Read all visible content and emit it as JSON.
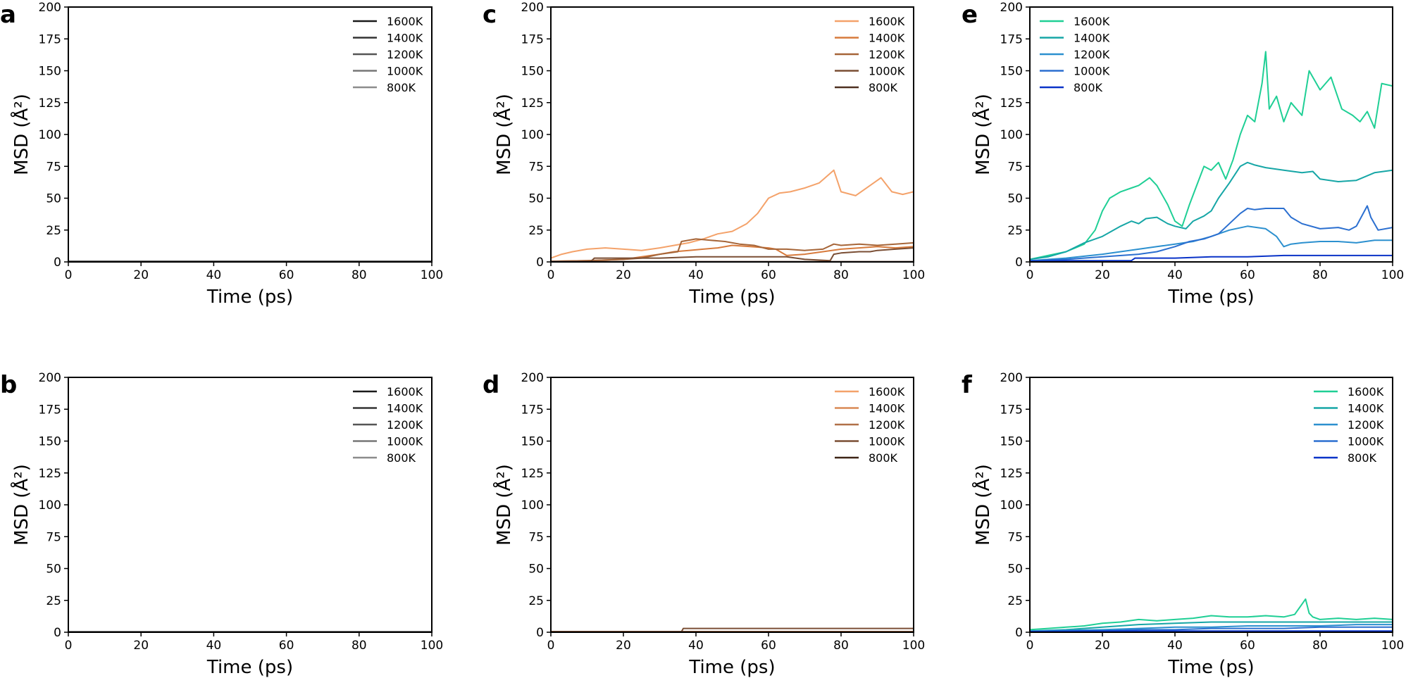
{
  "chart_data": [
    {
      "type": "line",
      "panel": "a",
      "xlabel": "Time (ps)",
      "ylabel": "MSD (Å²)",
      "xlim": [
        0,
        100
      ],
      "ylim": [
        0,
        200
      ],
      "xticks": [
        0,
        20,
        40,
        60,
        80,
        100
      ],
      "yticks": [
        0,
        25,
        50,
        75,
        100,
        125,
        150,
        175,
        200
      ],
      "legend_position": "top-right",
      "series": [
        {
          "name": "1600K",
          "color": "#1a1a1a",
          "x": [
            0,
            100
          ],
          "values": [
            0.6,
            0.6
          ]
        },
        {
          "name": "1400K",
          "color": "#333333",
          "x": [
            0,
            100
          ],
          "values": [
            0.5,
            0.5
          ]
        },
        {
          "name": "1200K",
          "color": "#555555",
          "x": [
            0,
            100
          ],
          "values": [
            0.4,
            0.4
          ]
        },
        {
          "name": "1000K",
          "color": "#777777",
          "x": [
            0,
            100
          ],
          "values": [
            0.4,
            0.4
          ]
        },
        {
          "name": "800K",
          "color": "#8c8c8c",
          "x": [
            0,
            100
          ],
          "values": [
            0.3,
            0.3
          ]
        }
      ]
    },
    {
      "type": "line",
      "panel": "c",
      "xlabel": "Time (ps)",
      "ylabel": "MSD (Å²)",
      "xlim": [
        0,
        100
      ],
      "ylim": [
        0,
        200
      ],
      "xticks": [
        0,
        20,
        40,
        60,
        80,
        100
      ],
      "yticks": [
        0,
        25,
        50,
        75,
        100,
        125,
        150,
        175,
        200
      ],
      "legend_position": "top-right",
      "series": [
        {
          "name": "1600K",
          "color": "#f4a26a",
          "x": [
            0,
            3,
            6,
            10,
            15,
            20,
            25,
            30,
            34,
            38,
            42,
            46,
            50,
            54,
            57,
            60,
            63,
            66,
            70,
            74,
            78,
            80,
            84,
            88,
            91,
            94,
            97,
            100
          ],
          "values": [
            3,
            6,
            8,
            10,
            11,
            10,
            9,
            11,
            13,
            15,
            18,
            22,
            24,
            30,
            38,
            50,
            54,
            55,
            58,
            62,
            72,
            55,
            52,
            60,
            66,
            55,
            53,
            55
          ]
        },
        {
          "name": "1400K",
          "color": "#d77a3c",
          "x": [
            0,
            10,
            20,
            25,
            30,
            34,
            38,
            42,
            46,
            50,
            55,
            60,
            62,
            65,
            70,
            75,
            80,
            85,
            90,
            95,
            100
          ],
          "values": [
            0.5,
            1,
            2,
            4,
            6,
            8,
            9,
            10,
            11,
            13,
            12,
            11,
            10,
            5,
            6,
            8,
            10,
            11,
            12,
            11,
            12
          ]
        },
        {
          "name": "1200K",
          "color": "#a66538",
          "x": [
            0,
            10,
            20,
            25,
            30,
            35,
            36,
            40,
            44,
            48,
            52,
            56,
            60,
            65,
            70,
            75,
            78,
            80,
            85,
            90,
            95,
            100
          ],
          "values": [
            0.5,
            1,
            2,
            3,
            6,
            8,
            16,
            18,
            17,
            16,
            14,
            13,
            10,
            10,
            9,
            10,
            14,
            13,
            14,
            13,
            14,
            15
          ]
        },
        {
          "name": "1000K",
          "color": "#7a4e34",
          "x": [
            0,
            11,
            12,
            30,
            40,
            50,
            60,
            65,
            70,
            77,
            78,
            80,
            85,
            88,
            90,
            95,
            100
          ],
          "values": [
            0.3,
            0.3,
            3,
            3,
            4,
            4,
            4,
            4,
            2,
            1,
            6,
            7,
            8,
            8,
            9,
            10,
            11
          ]
        },
        {
          "name": "800K",
          "color": "#4e3020",
          "x": [
            0,
            100
          ],
          "values": [
            0.2,
            0.2
          ]
        }
      ]
    },
    {
      "type": "line",
      "panel": "e",
      "xlabel": "Time (ps)",
      "ylabel": "MSD (Å²)",
      "xlim": [
        0,
        100
      ],
      "ylim": [
        0,
        200
      ],
      "xticks": [
        0,
        20,
        40,
        60,
        80,
        100
      ],
      "yticks": [
        0,
        25,
        50,
        75,
        100,
        125,
        150,
        175,
        200
      ],
      "legend_position": "top-left",
      "series": [
        {
          "name": "1600K",
          "color": "#1fcf95",
          "x": [
            0,
            5,
            10,
            15,
            18,
            20,
            22,
            25,
            28,
            30,
            33,
            35,
            38,
            40,
            42,
            44,
            46,
            48,
            50,
            52,
            54,
            56,
            58,
            60,
            62,
            64,
            65,
            66,
            68,
            70,
            72,
            75,
            77,
            80,
            83,
            86,
            89,
            91,
            93,
            95,
            97,
            100
          ],
          "values": [
            2,
            5,
            8,
            14,
            25,
            40,
            50,
            55,
            58,
            60,
            66,
            60,
            45,
            32,
            28,
            45,
            60,
            75,
            72,
            78,
            65,
            80,
            100,
            115,
            110,
            140,
            165,
            120,
            130,
            110,
            125,
            115,
            150,
            135,
            145,
            120,
            115,
            110,
            118,
            105,
            140,
            138
          ]
        },
        {
          "name": "1400K",
          "color": "#16a6a6",
          "x": [
            0,
            5,
            10,
            15,
            20,
            25,
            28,
            30,
            32,
            35,
            38,
            40,
            43,
            45,
            48,
            50,
            52,
            55,
            58,
            60,
            62,
            65,
            70,
            75,
            78,
            80,
            85,
            90,
            95,
            100
          ],
          "values": [
            2,
            4,
            8,
            15,
            20,
            28,
            32,
            30,
            34,
            35,
            30,
            28,
            26,
            32,
            36,
            40,
            50,
            62,
            75,
            78,
            76,
            74,
            72,
            70,
            71,
            65,
            63,
            64,
            70,
            72
          ]
        },
        {
          "name": "1200K",
          "color": "#2c90cf",
          "x": [
            0,
            10,
            20,
            30,
            35,
            40,
            45,
            50,
            52,
            55,
            60,
            65,
            68,
            70,
            72,
            75,
            80,
            85,
            90,
            95,
            100
          ],
          "values": [
            1,
            3,
            6,
            10,
            12,
            14,
            16,
            20,
            22,
            25,
            28,
            26,
            20,
            12,
            14,
            15,
            16,
            16,
            15,
            17,
            17
          ]
        },
        {
          "name": "1000K",
          "color": "#2b6fd0",
          "x": [
            0,
            10,
            20,
            30,
            35,
            40,
            44,
            48,
            52,
            55,
            58,
            60,
            62,
            65,
            70,
            72,
            75,
            80,
            85,
            88,
            90,
            93,
            94,
            96,
            100
          ],
          "values": [
            1,
            2,
            4,
            6,
            8,
            12,
            16,
            18,
            22,
            30,
            38,
            42,
            41,
            42,
            42,
            35,
            30,
            26,
            27,
            25,
            28,
            44,
            35,
            25,
            27
          ]
        },
        {
          "name": "800K",
          "color": "#0a33c8",
          "x": [
            0,
            10,
            20,
            28,
            29,
            40,
            50,
            60,
            70,
            80,
            90,
            100
          ],
          "values": [
            0.5,
            1,
            1,
            1,
            3,
            3,
            4,
            4,
            5,
            5,
            5,
            5
          ]
        }
      ]
    },
    {
      "type": "line",
      "panel": "b",
      "xlabel": "Time (ps)",
      "ylabel": "MSD (Å²)",
      "xlim": [
        0,
        100
      ],
      "ylim": [
        0,
        200
      ],
      "xticks": [
        0,
        20,
        40,
        60,
        80,
        100
      ],
      "yticks": [
        0,
        25,
        50,
        75,
        100,
        125,
        150,
        175,
        200
      ],
      "legend_position": "top-right",
      "series": [
        {
          "name": "1600K",
          "color": "#1a1a1a",
          "x": [
            0,
            100
          ],
          "values": [
            0.5,
            0.5
          ]
        },
        {
          "name": "1400K",
          "color": "#333333",
          "x": [
            0,
            100
          ],
          "values": [
            0.5,
            0.5
          ]
        },
        {
          "name": "1200K",
          "color": "#555555",
          "x": [
            0,
            100
          ],
          "values": [
            0.4,
            0.4
          ]
        },
        {
          "name": "1000K",
          "color": "#777777",
          "x": [
            0,
            100
          ],
          "values": [
            0.4,
            0.4
          ]
        },
        {
          "name": "800K",
          "color": "#8c8c8c",
          "x": [
            0,
            100
          ],
          "values": [
            0.3,
            0.3
          ]
        }
      ]
    },
    {
      "type": "line",
      "panel": "d",
      "xlabel": "Time (ps)",
      "ylabel": "MSD (Å²)",
      "xlim": [
        0,
        100
      ],
      "ylim": [
        0,
        200
      ],
      "xticks": [
        0,
        20,
        40,
        60,
        80,
        100
      ],
      "yticks": [
        0,
        25,
        50,
        75,
        100,
        125,
        150,
        175,
        200
      ],
      "legend_position": "top-right",
      "series": [
        {
          "name": "1600K",
          "color": "#f4a26a",
          "x": [
            0,
            100
          ],
          "values": [
            0.5,
            0.5
          ]
        },
        {
          "name": "1400K",
          "color": "#d98a55",
          "x": [
            0,
            100
          ],
          "values": [
            0.5,
            0.5
          ]
        },
        {
          "name": "1200K",
          "color": "#b07048",
          "x": [
            0,
            100
          ],
          "values": [
            0.4,
            0.4
          ]
        },
        {
          "name": "1000K",
          "color": "#7a4e34",
          "x": [
            0,
            36,
            36.5,
            100
          ],
          "values": [
            0.4,
            0.4,
            3,
            3
          ]
        },
        {
          "name": "800K",
          "color": "#3d2416",
          "x": [
            0,
            100
          ],
          "values": [
            0.3,
            0.3
          ]
        }
      ]
    },
    {
      "type": "line",
      "panel": "f",
      "xlabel": "Time (ps)",
      "ylabel": "MSD (Å²)",
      "xlim": [
        0,
        100
      ],
      "ylim": [
        0,
        200
      ],
      "xticks": [
        0,
        20,
        40,
        60,
        80,
        100
      ],
      "yticks": [
        0,
        25,
        50,
        75,
        100,
        125,
        150,
        175,
        200
      ],
      "legend_position": "top-right",
      "series": [
        {
          "name": "1600K",
          "color": "#1fcf95",
          "x": [
            0,
            5,
            10,
            15,
            20,
            25,
            30,
            35,
            40,
            45,
            50,
            55,
            60,
            65,
            70,
            73,
            75,
            76,
            77,
            78,
            80,
            85,
            90,
            95,
            100
          ],
          "values": [
            2,
            3,
            4,
            5,
            7,
            8,
            10,
            9,
            10,
            11,
            13,
            12,
            12,
            13,
            12,
            14,
            22,
            26,
            15,
            12,
            10,
            11,
            10,
            11,
            10
          ]
        },
        {
          "name": "1400K",
          "color": "#16a6a6",
          "x": [
            0,
            10,
            20,
            30,
            40,
            50,
            60,
            70,
            80,
            90,
            100
          ],
          "values": [
            1,
            2,
            4,
            6,
            7,
            8,
            8,
            8,
            8,
            8,
            8
          ]
        },
        {
          "name": "1200K",
          "color": "#2c90cf",
          "x": [
            0,
            10,
            20,
            30,
            40,
            50,
            60,
            70,
            80,
            90,
            100
          ],
          "values": [
            1,
            1.5,
            2,
            3,
            4,
            4,
            5,
            5,
            5,
            6,
            6
          ]
        },
        {
          "name": "1000K",
          "color": "#2b6fd0",
          "x": [
            0,
            10,
            20,
            30,
            40,
            50,
            60,
            70,
            80,
            90,
            100
          ],
          "values": [
            0.5,
            1,
            1,
            2,
            2,
            3,
            3,
            3,
            4,
            4,
            4
          ]
        },
        {
          "name": "800K",
          "color": "#0a33c8",
          "x": [
            0,
            20,
            40,
            60,
            80,
            100
          ],
          "values": [
            0.5,
            1,
            1,
            1,
            1,
            1
          ]
        }
      ]
    }
  ]
}
